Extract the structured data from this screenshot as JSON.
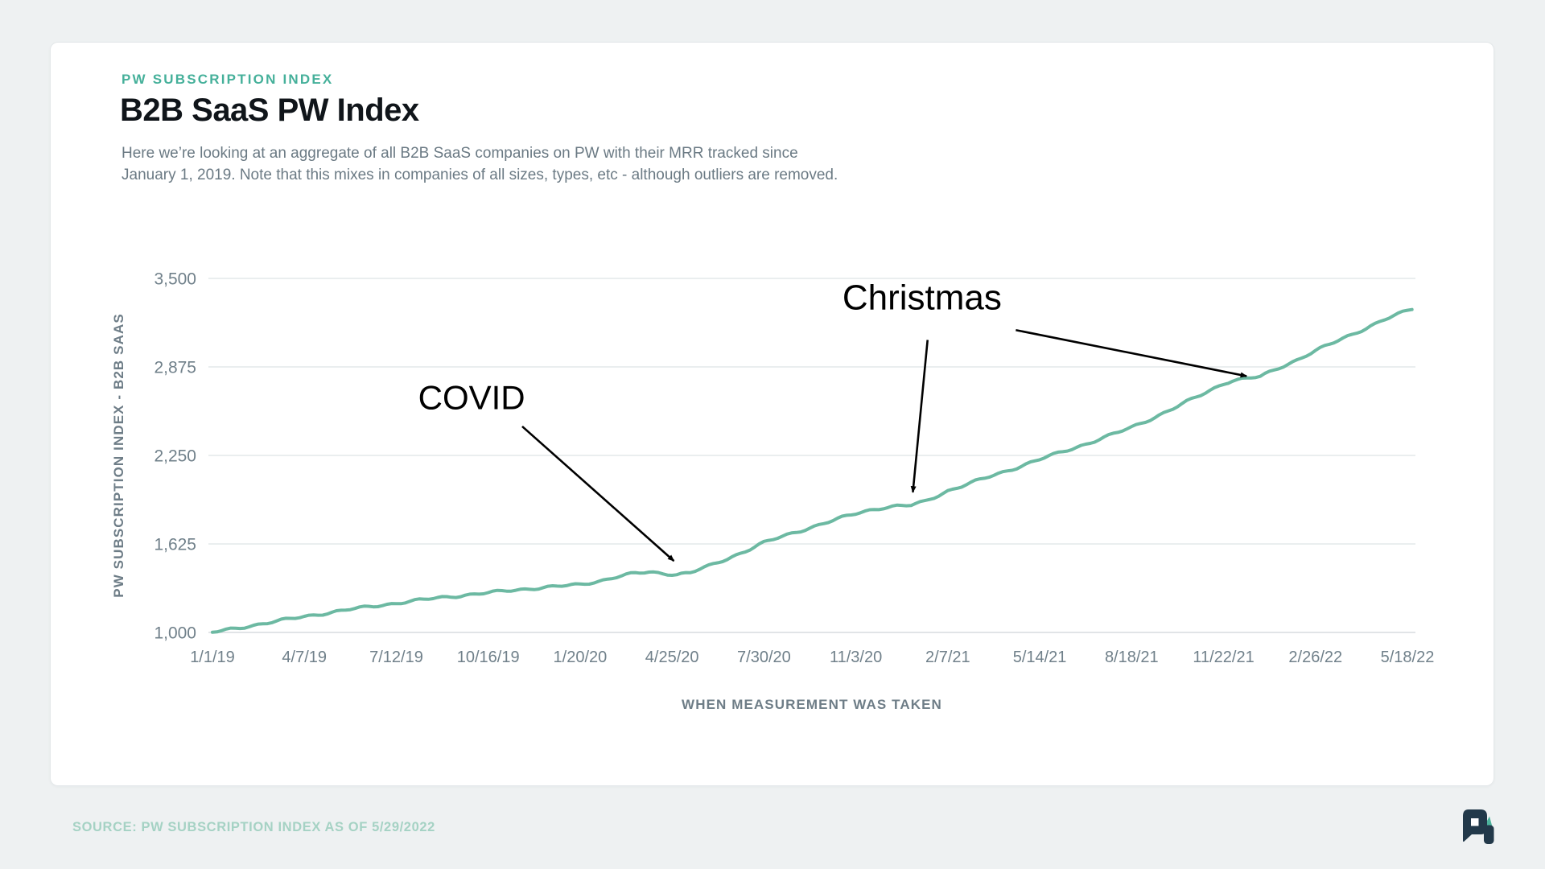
{
  "card": {
    "eyebrow": "PW SUBSCRIPTION INDEX",
    "title": "B2B SaaS PW Index",
    "description_line1": "Here we’re looking at an aggregate of all B2B SaaS companies on PW with their MRR tracked since",
    "description_line2": "January 1, 2019. Note that this mixes in companies of all sizes, types, etc - although outliers are removed."
  },
  "footer": {
    "source": "SOURCE: PW SUBSCRIPTION INDEX AS OF 5/29/2022"
  },
  "logo": {
    "name": "profitwell-mark",
    "navy": "#22394a",
    "teal": "#4cb39c"
  },
  "chart_data": {
    "type": "line",
    "title": "B2B SaaS PW Index",
    "xlabel": "WHEN MEASUREMENT WAS TAKEN",
    "ylabel": "PW SUBSCRIPTION INDEX - B2B SAAS",
    "x_tick_labels": [
      "1/1/19",
      "4/7/19",
      "7/12/19",
      "10/16/19",
      "1/20/20",
      "4/25/20",
      "7/30/20",
      "11/3/20",
      "2/7/21",
      "5/14/21",
      "8/18/21",
      "11/22/21",
      "2/26/22",
      "5/18/22"
    ],
    "y_ticks": [
      {
        "value": 1000,
        "label": "1,000"
      },
      {
        "value": 1625,
        "label": "1,625"
      },
      {
        "value": 2250,
        "label": "2,250"
      },
      {
        "value": 2875,
        "label": "2,875"
      },
      {
        "value": 3500,
        "label": "3,500"
      }
    ],
    "ylim": [
      1000,
      3500
    ],
    "grid": "horizontal-only",
    "legend": "none",
    "line_color": "#6cb9a2",
    "grid_color": "#e4e8ea",
    "baseline_color": "#d7dcdf",
    "series": [
      {
        "name": "PW Subscription Index - B2B SaaS",
        "points": [
          [
            0,
            1000
          ],
          [
            0.25,
            1028
          ],
          [
            0.5,
            1057
          ],
          [
            0.75,
            1085
          ],
          [
            1,
            1112
          ],
          [
            1.25,
            1138
          ],
          [
            1.5,
            1163
          ],
          [
            1.75,
            1185
          ],
          [
            2,
            1207
          ],
          [
            2.25,
            1228
          ],
          [
            2.5,
            1247
          ],
          [
            2.75,
            1264
          ],
          [
            3,
            1280
          ],
          [
            3.25,
            1297
          ],
          [
            3.5,
            1312
          ],
          [
            3.75,
            1325
          ],
          [
            4,
            1338
          ],
          [
            4.2,
            1362
          ],
          [
            4.4,
            1393
          ],
          [
            4.6,
            1417
          ],
          [
            4.75,
            1426
          ],
          [
            4.9,
            1418
          ],
          [
            5.05,
            1410
          ],
          [
            5.2,
            1422
          ],
          [
            5.4,
            1468
          ],
          [
            5.6,
            1520
          ],
          [
            5.8,
            1576
          ],
          [
            6,
            1634
          ],
          [
            6.25,
            1688
          ],
          [
            6.5,
            1740
          ],
          [
            6.75,
            1790
          ],
          [
            7,
            1840
          ],
          [
            7.15,
            1864
          ],
          [
            7.3,
            1882
          ],
          [
            7.45,
            1892
          ],
          [
            7.6,
            1897
          ],
          [
            7.75,
            1925
          ],
          [
            8,
            2000
          ],
          [
            8.25,
            2055
          ],
          [
            8.5,
            2110
          ],
          [
            8.75,
            2165
          ],
          [
            9,
            2222
          ],
          [
            9.25,
            2276
          ],
          [
            9.5,
            2330
          ],
          [
            9.75,
            2388
          ],
          [
            10,
            2448
          ],
          [
            10.25,
            2520
          ],
          [
            10.5,
            2596
          ],
          [
            10.75,
            2676
          ],
          [
            11,
            2758
          ],
          [
            11.1,
            2780
          ],
          [
            11.25,
            2792
          ],
          [
            11.4,
            2806
          ],
          [
            11.6,
            2868
          ],
          [
            11.8,
            2925
          ],
          [
            12,
            2988
          ],
          [
            12.25,
            3062
          ],
          [
            12.5,
            3135
          ],
          [
            12.75,
            3208
          ],
          [
            13.05,
            3285
          ]
        ]
      }
    ],
    "annotations": [
      {
        "id": "covid",
        "text": "COVID",
        "tx": 2.82,
        "tv": 2660,
        "font_size": 42,
        "arrows": [
          {
            "t1": 3.37,
            "v1": 2455,
            "t2": 5.02,
            "v2": 1505
          }
        ]
      },
      {
        "id": "christmas",
        "text": "Christmas",
        "tx": 7.72,
        "tv": 3370,
        "font_size": 44,
        "arrows": [
          {
            "t1": 7.78,
            "v1": 3065,
            "t2": 7.62,
            "v2": 1990
          },
          {
            "t1": 8.74,
            "v1": 3135,
            "t2": 11.25,
            "v2": 2810
          }
        ]
      }
    ]
  }
}
